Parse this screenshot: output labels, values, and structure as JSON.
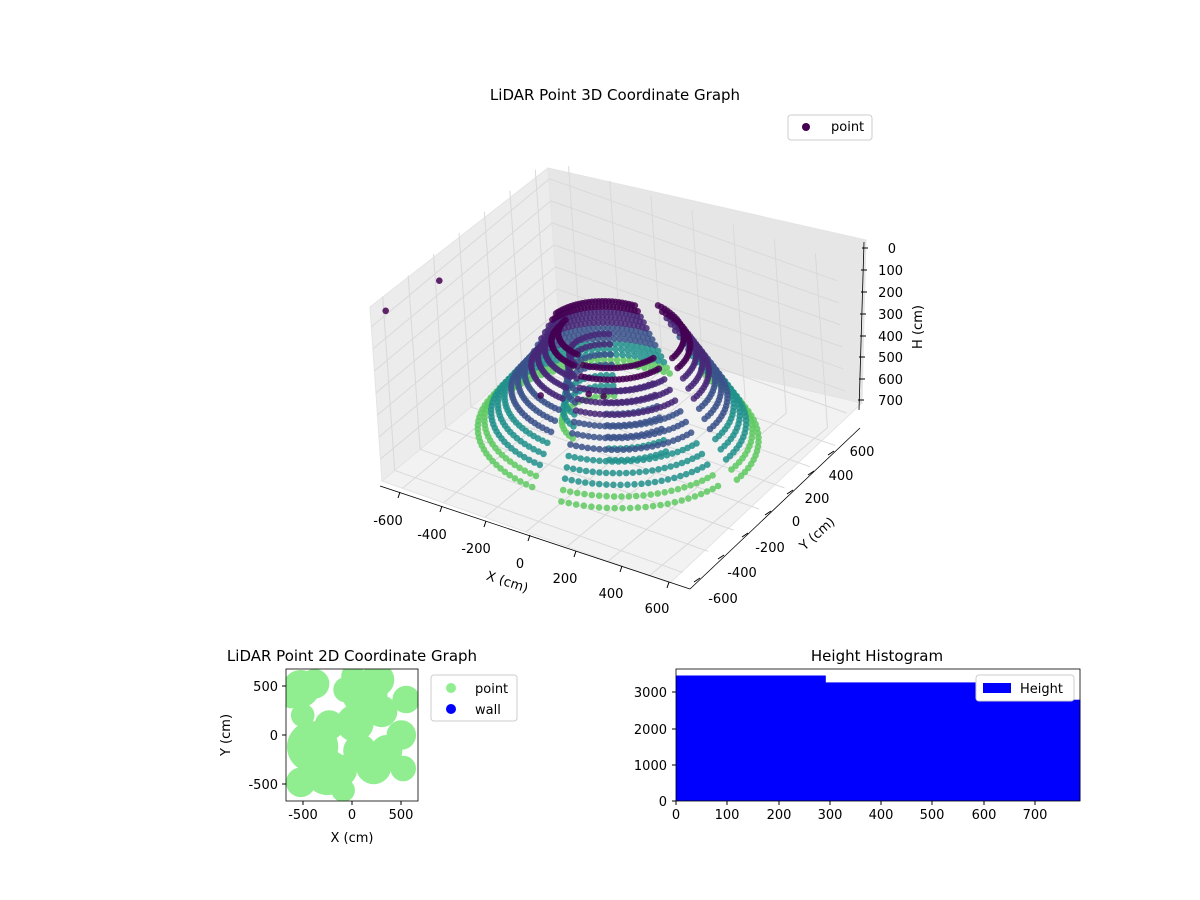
{
  "colors": {
    "viridis_dark": "#440154",
    "viridis_mid": "#3b528b",
    "viridis_teal": "#21918c",
    "viridis_green": "#5ec962",
    "viridis_yellow": "#fde725",
    "point_2d": "#90ee90",
    "wall_2d": "#0000ff",
    "histogram": "#0000ff",
    "pane": "#f2f2f2",
    "grid": "#d9d9d9"
  },
  "chart_data": [
    {
      "type": "scatter",
      "title": "LiDAR Point 3D Coordinate Graph",
      "xlabel": "X (cm)",
      "ylabel": "Y (cm)",
      "zlabel": "H (cm)",
      "xlim": [
        -700,
        700
      ],
      "ylim": [
        -700,
        700
      ],
      "zlim": [
        0,
        790
      ],
      "z_inverted": true,
      "x_ticks": [
        "-600",
        "-400",
        "-200",
        "0",
        "200",
        "400",
        "600"
      ],
      "y_ticks": [
        "-600",
        "-400",
        "-200",
        "0",
        "200",
        "400",
        "600"
      ],
      "z_ticks": [
        "0",
        "100",
        "200",
        "300",
        "400",
        "500",
        "600",
        "700"
      ],
      "legend": [
        {
          "label": "point",
          "color": "#440154"
        }
      ],
      "legend_position": "upper-right",
      "grid": true,
      "colormap": "viridis"
    },
    {
      "type": "scatter",
      "title": "LiDAR Point 2D Coordinate Graph",
      "xlabel": "X (cm)",
      "ylabel": "Y (cm)",
      "xlim": [
        -670,
        670
      ],
      "ylim": [
        -670,
        670
      ],
      "x_ticks": [
        "-500",
        "0",
        "500"
      ],
      "y_ticks": [
        "500",
        "0",
        "-500"
      ],
      "legend": [
        {
          "label": "point",
          "color": "#90ee90"
        },
        {
          "label": "wall",
          "color": "#0000ff"
        }
      ],
      "legend_position": "outside-right"
    },
    {
      "type": "bar",
      "title": "Height Histogram",
      "xlim": [
        0,
        790
      ],
      "ylim": [
        0,
        3650
      ],
      "x_ticks": [
        "0",
        "100",
        "200",
        "300",
        "400",
        "500",
        "600",
        "700"
      ],
      "y_ticks": [
        "0",
        "1000",
        "2000",
        "3000"
      ],
      "bins": [
        {
          "x0": 0,
          "x1": 292,
          "count": 3470
        },
        {
          "x0": 292,
          "x1": 586,
          "count": 3280
        },
        {
          "x0": 586,
          "x1": 790,
          "count": 2800
        }
      ],
      "legend": [
        {
          "label": "Height",
          "color": "#0000ff"
        }
      ],
      "legend_position": "upper-right"
    }
  ]
}
